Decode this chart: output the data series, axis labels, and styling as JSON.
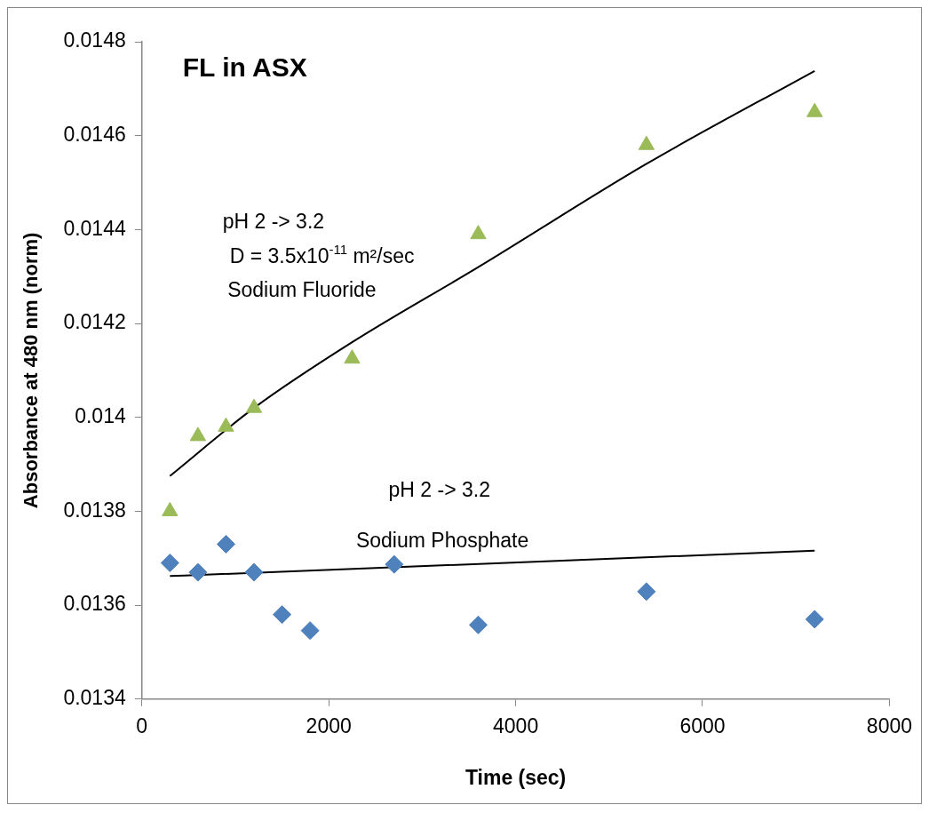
{
  "chart_data": {
    "type": "scatter",
    "title": "FL in ASX",
    "xlabel": "Time (sec)",
    "ylabel": "Absorbance at 480 nm (norm)",
    "xlim": [
      0,
      8000
    ],
    "xticks": [
      0,
      2000,
      4000,
      6000,
      8000
    ],
    "ylim": [
      0.0134,
      0.0148
    ],
    "yticks": [
      0.0134,
      0.0136,
      0.0138,
      0.014,
      0.0142,
      0.0144,
      0.0146,
      0.0148
    ],
    "grid": false,
    "legend": false,
    "series": [
      {
        "marker": "triangle",
        "color": "#9bbb59",
        "x": [
          300,
          600,
          900,
          1200,
          2250,
          3600,
          5400,
          7200
        ],
        "values": [
          0.0138,
          0.01396,
          0.01398,
          0.01402,
          0.014125,
          0.01439,
          0.01458,
          0.01465
        ]
      },
      {
        "marker": "diamond",
        "color": "#4f81bd",
        "x": [
          300,
          600,
          900,
          1200,
          1500,
          1800,
          2700,
          3600,
          5400,
          7200
        ],
        "values": [
          0.01369,
          0.01367,
          0.01373,
          0.01367,
          0.01358,
          0.013546,
          0.013687,
          0.013558,
          0.013629,
          0.01357
        ]
      },
      {
        "type": "line",
        "marker": "none",
        "color": "#000000",
        "x": [
          300,
          1200,
          2250,
          3600,
          5400,
          7200
        ],
        "values": [
          0.013875,
          0.01402,
          0.01416,
          0.01432,
          0.01454,
          0.014738
        ]
      },
      {
        "type": "line",
        "marker": "none",
        "color": "#000000",
        "x": [
          300,
          7200
        ],
        "values": [
          0.013662,
          0.013716
        ]
      }
    ],
    "annotations": [
      "pH 2 -> 3.2",
      "D = 3.5x10$^{-11}$ m²/sec",
      "Sodium Fluoride",
      "pH 2 -> 3.2",
      "Sodium Phosphate"
    ]
  }
}
